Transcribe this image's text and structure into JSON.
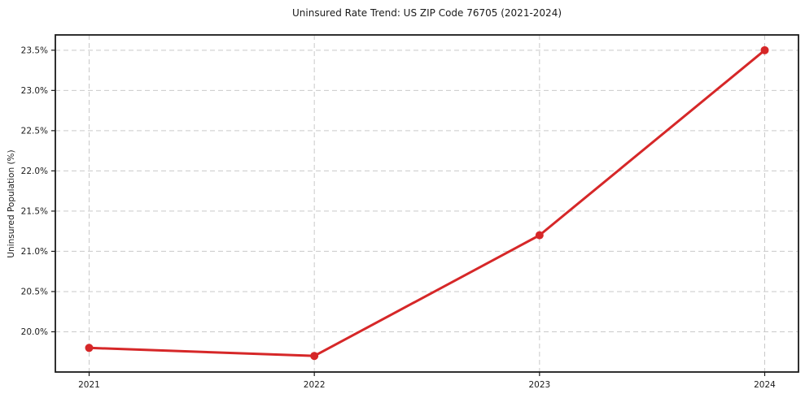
{
  "chart_data": {
    "type": "line",
    "title": "Uninsured Rate Trend: US ZIP Code 76705 (2021-2024)",
    "xlabel": "",
    "ylabel": "Uninsured Population (%)",
    "x": [
      2021,
      2022,
      2023,
      2024
    ],
    "values": [
      19.8,
      19.7,
      21.2,
      23.5
    ],
    "xtick_labels": [
      "2021",
      "2022",
      "2023",
      "2024"
    ],
    "yticks": [
      20.0,
      20.5,
      21.0,
      21.5,
      22.0,
      22.5,
      23.0,
      23.5
    ],
    "ytick_labels": [
      "20.0%",
      "20.5%",
      "21.0%",
      "21.5%",
      "22.0%",
      "22.5%",
      "23.0%",
      "23.5%"
    ],
    "xlim": [
      2020.85,
      2024.15
    ],
    "ylim": [
      19.5,
      23.69
    ],
    "grid": true,
    "grid_style": "dashed",
    "legend": false,
    "line_color": "#d62728",
    "marker": "circle",
    "background_color": "#ffffff"
  }
}
